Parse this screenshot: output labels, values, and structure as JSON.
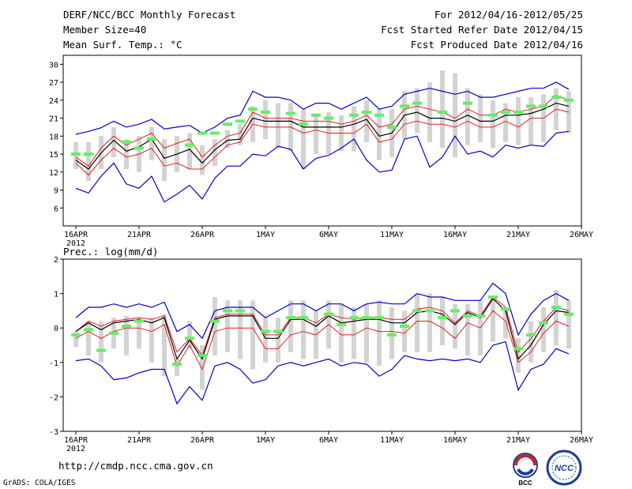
{
  "header": {
    "title": "DERF/NCC/BCC Monthly Forecast",
    "member_size": "Member Size=40",
    "variable": "Mean Surf. Temp.: °C",
    "period": "For 2012/04/16-2012/05/25",
    "started": "Fcst Started Refer Date 2012/04/15",
    "produced": "Fcst Produced Date 2012/04/16"
  },
  "footer": {
    "url": "http://cmdp.ncc.cma.gov.cn",
    "credit": "GrADS: COLA/IGES",
    "logo_bcc": "BCC",
    "logo_ncc": "NCC"
  },
  "colors": {
    "spread": "#d3d3d3",
    "obs": "#66ee66",
    "envelope": "#0000cc",
    "quartile": "#dd2222",
    "mean": "#000000"
  },
  "chart_data": [
    {
      "type": "line",
      "title": "Mean Surf. Temp.: °C",
      "ylim": [
        3,
        31.5
      ],
      "yticks": [
        6,
        9,
        12,
        15,
        18,
        21,
        24,
        27,
        30
      ],
      "xticks": [
        "16APR",
        "21APR",
        "26APR",
        "1MAY",
        "6MAY",
        "11MAY",
        "16MAY",
        "21MAY",
        "26MAY"
      ],
      "xtick_days": [
        1,
        6,
        11,
        16,
        21,
        26,
        31,
        36,
        41
      ],
      "year_label": "2012",
      "days": [
        1,
        2,
        3,
        4,
        5,
        6,
        7,
        8,
        9,
        10,
        11,
        12,
        13,
        14,
        15,
        16,
        17,
        18,
        19,
        20,
        21,
        22,
        23,
        24,
        25,
        26,
        27,
        28,
        29,
        30,
        31,
        32,
        33,
        34,
        35,
        36,
        37,
        38,
        39,
        40
      ],
      "series": [
        {
          "name": "max",
          "values": [
            18.3,
            18.8,
            19.4,
            20.5,
            19.5,
            20,
            20.8,
            19.2,
            19.5,
            19.8,
            18.5,
            19.5,
            21,
            21.5,
            25.5,
            24.5,
            24.5,
            24,
            22.5,
            23.5,
            23.5,
            22.5,
            23.5,
            24.5,
            22.5,
            23,
            25,
            25.5,
            26,
            25.5,
            25,
            25.5,
            24.5,
            24.5,
            25,
            25.5,
            26,
            26,
            27,
            25.8
          ]
        },
        {
          "name": "q75",
          "values": [
            14.5,
            13,
            16,
            18,
            16.5,
            17.5,
            18.5,
            16,
            16.8,
            17.5,
            14.5,
            16.5,
            18,
            18.5,
            22,
            21,
            21,
            21,
            20.5,
            20.5,
            20.5,
            20,
            20.5,
            21.5,
            19.5,
            20,
            22.5,
            23,
            22.5,
            22,
            21,
            22.5,
            21.5,
            21.5,
            22.5,
            22,
            22.5,
            23,
            24.8,
            24
          ]
        },
        {
          "name": "mean",
          "values": [
            14,
            12.5,
            15.2,
            17.3,
            15.5,
            16.2,
            17.5,
            14.3,
            15,
            15.8,
            13.5,
            15.7,
            17.3,
            17.5,
            21,
            20.5,
            20.5,
            20.5,
            19.5,
            19.5,
            19.5,
            19.5,
            20,
            20.8,
            18,
            18.5,
            21.5,
            22,
            21,
            21,
            20.5,
            21.5,
            20.5,
            20.5,
            21.5,
            21.5,
            21.8,
            22.5,
            23.5,
            23
          ]
        },
        {
          "name": "q25",
          "values": [
            13.5,
            11.5,
            14,
            16,
            14.5,
            15,
            16,
            13,
            13.5,
            12.5,
            12.5,
            14.5,
            16.5,
            17,
            20,
            19.5,
            19.5,
            19.5,
            18.5,
            19,
            18.5,
            18.5,
            18.5,
            20,
            17,
            17.5,
            20,
            20.5,
            20,
            20,
            19.5,
            20.5,
            19.5,
            19.5,
            20.5,
            19.5,
            21,
            21,
            22.5,
            22
          ]
        },
        {
          "name": "min",
          "values": [
            9.3,
            8.5,
            11.3,
            13.5,
            10,
            9.3,
            11.3,
            7,
            8.3,
            9.8,
            7.5,
            11,
            13,
            13,
            15,
            14.7,
            16.3,
            15.8,
            12.5,
            14.3,
            14.8,
            16,
            17.5,
            14,
            12,
            12.3,
            17.5,
            18,
            12.8,
            14.5,
            18,
            15,
            15.5,
            14.5,
            16.5,
            16,
            16.5,
            16.3,
            18.5,
            18.8
          ]
        },
        {
          "name": "obs",
          "values": [
            15,
            15,
            null,
            null,
            17,
            16,
            17.5,
            null,
            null,
            16.5,
            18.5,
            18.5,
            20,
            20.5,
            22.5,
            22,
            null,
            21.8,
            20,
            21.5,
            21,
            null,
            21.5,
            22,
            21.5,
            19.5,
            23,
            23.5,
            null,
            22,
            null,
            23.5,
            null,
            21.5,
            22,
            22,
            23,
            23,
            24.5,
            24
          ]
        }
      ],
      "spread": {
        "lo": [
          12.5,
          10.5,
          12.5,
          14.5,
          12.5,
          12,
          14,
          10.5,
          12,
          12.5,
          11.5,
          13,
          16,
          16.5,
          17,
          17.5,
          16,
          15.5,
          12.5,
          15,
          15,
          15.5,
          15.5,
          17,
          14,
          14.5,
          17.5,
          18.5,
          17,
          16,
          14.5,
          16.5,
          17,
          16,
          17,
          16.5,
          16.5,
          17,
          19,
          18.5
        ],
        "hi": [
          17,
          17,
          18,
          19.5,
          17.5,
          18,
          19.5,
          17.5,
          18,
          18.5,
          16.5,
          17.5,
          19,
          20,
          23,
          24,
          23.5,
          23.5,
          22.5,
          21.5,
          22,
          21.5,
          23,
          24,
          22.5,
          22.5,
          25.5,
          26,
          27,
          29,
          28.5,
          26,
          25,
          24,
          23.5,
          24.5,
          24.5,
          25,
          26,
          25.5
        ]
      }
    },
    {
      "type": "line",
      "title": "Prec.: log(mm/d)",
      "ylim": [
        -3,
        2
      ],
      "yticks": [
        -3,
        -2,
        -1,
        0,
        1,
        2
      ],
      "xticks": [
        "16APR",
        "21APR",
        "26APR",
        "1MAY",
        "6MAY",
        "11MAY",
        "16MAY",
        "21MAY",
        "26MAY"
      ],
      "xtick_days": [
        1,
        6,
        11,
        16,
        21,
        26,
        31,
        36,
        41
      ],
      "year_label": "2012",
      "days": [
        1,
        2,
        3,
        4,
        5,
        6,
        7,
        8,
        9,
        10,
        11,
        12,
        13,
        14,
        15,
        16,
        17,
        18,
        19,
        20,
        21,
        22,
        23,
        24,
        25,
        26,
        27,
        28,
        29,
        30,
        31,
        32,
        33,
        34,
        35,
        36,
        37,
        38,
        39,
        40
      ],
      "series": [
        {
          "name": "max",
          "values": [
            0.3,
            0.6,
            0.6,
            0.7,
            0.6,
            0.7,
            0.6,
            0.75,
            -0.1,
            0.1,
            -0.3,
            0.5,
            0.6,
            0.6,
            0.6,
            0.3,
            0.5,
            0.7,
            0.7,
            0.5,
            0.7,
            0.7,
            0.5,
            0.7,
            0.75,
            0.7,
            0.7,
            1,
            0.9,
            0.9,
            0.8,
            0.8,
            0.8,
            1.3,
            1,
            -0.2,
            0.4,
            0.8,
            1.0,
            0.8
          ]
        },
        {
          "name": "q75",
          "values": [
            -0.1,
            0.2,
            0.05,
            0.2,
            0.25,
            0.3,
            0.25,
            0.35,
            -0.7,
            -0.3,
            -0.8,
            0.3,
            0.4,
            0.4,
            0.4,
            -0.2,
            -0.2,
            0.3,
            0.3,
            0.15,
            0.4,
            0.3,
            0.25,
            0.3,
            0.3,
            0.25,
            0.25,
            0.55,
            0.6,
            0.5,
            0.15,
            0.5,
            0.35,
            0.9,
            0.6,
            -0.7,
            -0.3,
            0.2,
            0.6,
            0.5
          ]
        },
        {
          "name": "mean",
          "values": [
            -0.1,
            0.15,
            -0.05,
            0.15,
            0.2,
            0.25,
            0.15,
            0.3,
            -0.9,
            -0.35,
            -0.9,
            0.25,
            0.35,
            0.35,
            0.35,
            -0.3,
            -0.3,
            0.25,
            0.25,
            0.05,
            0.35,
            0.15,
            0.2,
            0.25,
            0.25,
            0.15,
            0.15,
            0.45,
            0.5,
            0.4,
            0.1,
            0.45,
            0.3,
            0.85,
            0.5,
            -0.9,
            -0.5,
            0.1,
            0.5,
            0.45
          ]
        },
        {
          "name": "q25",
          "values": [
            -0.3,
            -0.1,
            -0.3,
            -0.1,
            0,
            0,
            -0.1,
            0.1,
            -1.1,
            -0.5,
            -1.2,
            -0.1,
            0,
            0,
            0,
            -0.6,
            -0.6,
            -0.2,
            -0.1,
            -0.2,
            0.1,
            -0.2,
            -0.2,
            0,
            -0.1,
            -0.1,
            -0.15,
            0.2,
            0.2,
            0,
            -0.3,
            0.15,
            0,
            0.5,
            0.2,
            -1,
            -0.7,
            -0.15,
            0.2,
            0.05
          ]
        },
        {
          "name": "min",
          "values": [
            -0.95,
            -0.9,
            -1.1,
            -1.5,
            -1.45,
            -1.3,
            -1.2,
            -1.2,
            -2.2,
            -1.7,
            -2.1,
            -1.1,
            -1,
            -1.2,
            -1.6,
            -1.5,
            -1.1,
            -1,
            -1.1,
            -1,
            -0.9,
            -1.1,
            -1,
            -1.05,
            -1.4,
            -1.2,
            -0.8,
            -0.9,
            -0.95,
            -0.9,
            -0.95,
            -0.9,
            -1,
            -0.5,
            -0.4,
            -1.8,
            -1.2,
            -1.05,
            -0.6,
            -0.75
          ]
        },
        {
          "name": "obs",
          "values": [
            -0.2,
            -0.05,
            -0.65,
            -0.15,
            0.05,
            0.2,
            null,
            null,
            -1.05,
            -0.3,
            -0.8,
            0.2,
            0.5,
            0.5,
            null,
            -0.1,
            -0.1,
            0.3,
            0.3,
            null,
            0.4,
            0.1,
            0.3,
            0.3,
            0.3,
            -0.2,
            0.05,
            0.5,
            0.5,
            0.3,
            0.5,
            0.35,
            0.35,
            0.9,
            0.55,
            -0.6,
            -0.2,
            0.15,
            0.6,
            0.4
          ]
        }
      ],
      "spread": {
        "lo": [
          -0.55,
          -0.8,
          -1,
          -0.6,
          -0.8,
          -0.6,
          -1,
          -1.4,
          -1.4,
          -0.6,
          -1.8,
          -0.8,
          -0.7,
          -0.9,
          -1.2,
          -1,
          -1,
          -0.7,
          -0.9,
          -0.9,
          -0.6,
          -1,
          -0.9,
          -1,
          -1.1,
          -0.9,
          -0.7,
          -0.7,
          -0.7,
          -0.5,
          -0.6,
          -0.8,
          -0.8,
          -0.4,
          -0.3,
          -1.3,
          -1,
          -0.7,
          -0.5,
          -0.6
        ],
        "hi": [
          -0.1,
          0.2,
          0.2,
          0.3,
          0.35,
          0.3,
          0.3,
          0.4,
          -0.9,
          0.2,
          -0.5,
          0.9,
          0.8,
          0.8,
          0.8,
          0.3,
          0.3,
          0.8,
          0.8,
          0.5,
          0.8,
          0.7,
          0.6,
          0.7,
          0.8,
          0.6,
          0.5,
          1,
          1,
          0.9,
          0.7,
          0.7,
          0.8,
          0.9,
          0.6,
          -0.3,
          0.2,
          0.6,
          1.1,
          0.8
        ]
      }
    }
  ]
}
